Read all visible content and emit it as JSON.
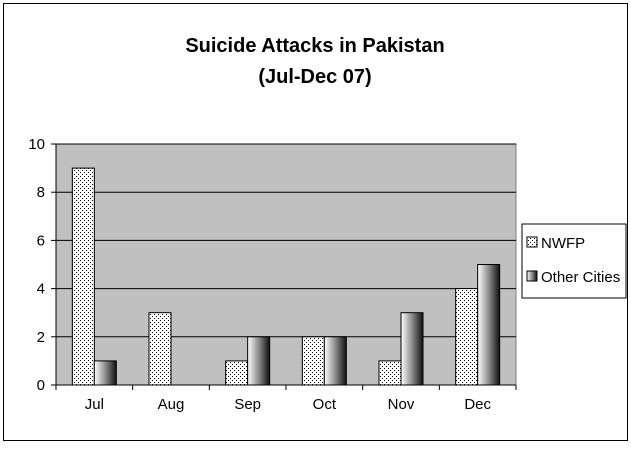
{
  "chart_data": {
    "type": "bar",
    "title": "Suicide Attacks in Pakistan",
    "subtitle": "(Jul-Dec 07)",
    "categories": [
      "Jul",
      "Aug",
      "Sep",
      "Oct",
      "Nov",
      "Dec"
    ],
    "series": [
      {
        "name": "NWFP",
        "values": [
          9,
          3,
          1,
          2,
          1,
          4
        ]
      },
      {
        "name": "Other Cities",
        "values": [
          1,
          0,
          2,
          2,
          3,
          5
        ]
      }
    ],
    "y_ticks": [
      "0",
      "2",
      "4",
      "6",
      "8",
      "10"
    ],
    "ylim": [
      0,
      10
    ],
    "grid": true,
    "legend_position": "right",
    "colors": {
      "plot_background": "#c0c0c0",
      "gridline": "#000000",
      "nwfp_fill": "#ffffff",
      "other_cities_fill": "#1a1a1a"
    }
  }
}
